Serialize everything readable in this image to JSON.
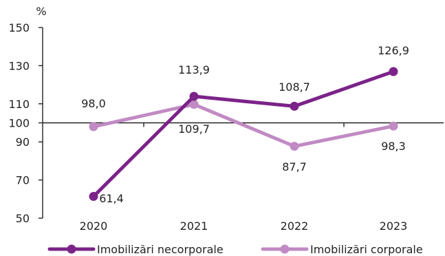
{
  "chart_data": {
    "type": "line",
    "unit_label": "%",
    "categories": [
      "2020",
      "2021",
      "2022",
      "2023"
    ],
    "ylim": [
      50,
      150
    ],
    "y_ticks": [
      50,
      70,
      90,
      100,
      110,
      130,
      150
    ],
    "y_tick_labels": [
      "50",
      "70",
      "90",
      "100",
      "110",
      "130",
      "150"
    ],
    "reference_line": 100,
    "grid": false,
    "legend_position": "bottom",
    "series": [
      {
        "name": "Imobilizări necorporale",
        "color": "#7b2389",
        "values": [
          61.4,
          113.9,
          108.7,
          126.9
        ],
        "labels": [
          "61,4",
          "113,9",
          "108,7",
          "126,9"
        ]
      },
      {
        "name": "Imobilizări corporale",
        "color": "#c18ac3",
        "values": [
          98.0,
          109.7,
          87.7,
          98.3
        ],
        "labels": [
          "98,0",
          "109,7",
          "87,7",
          "98,3"
        ]
      }
    ]
  }
}
